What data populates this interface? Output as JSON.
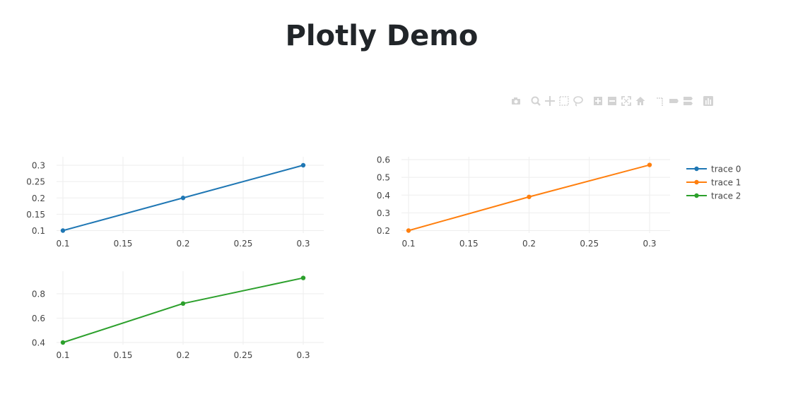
{
  "page": {
    "title": "Plotly Demo"
  },
  "modebar": {
    "buttons": [
      {
        "icon": "camera-icon"
      },
      {
        "icon": "zoom-icon"
      },
      {
        "icon": "pan-icon"
      },
      {
        "icon": "box-select-icon"
      },
      {
        "icon": "lasso-select-icon"
      },
      {
        "icon": "zoom-in-icon"
      },
      {
        "icon": "zoom-out-icon"
      },
      {
        "icon": "autoscale-icon"
      },
      {
        "icon": "home-icon"
      },
      {
        "icon": "spike-lines-icon"
      },
      {
        "icon": "hover-closest-icon"
      },
      {
        "icon": "hover-compare-icon"
      },
      {
        "icon": "plotly-logo-icon"
      }
    ],
    "color": "#d3d3d3"
  },
  "chart_data": [
    {
      "type": "line",
      "subplot": "top-left",
      "series": [
        {
          "name": "trace 0",
          "x": [
            0.1,
            0.2,
            0.3
          ],
          "y": [
            0.1,
            0.2,
            0.3
          ],
          "color": "#1f77b4"
        }
      ],
      "xlim": [
        0.1,
        0.3
      ],
      "ylim": [
        0.1,
        0.3
      ],
      "xticks": [
        "0.1",
        "0.15",
        "0.2",
        "0.25",
        "0.3"
      ],
      "yticks": [
        "0.1",
        "0.15",
        "0.2",
        "0.25",
        "0.3"
      ],
      "grid": true
    },
    {
      "type": "line",
      "subplot": "top-right",
      "series": [
        {
          "name": "trace 1",
          "x": [
            0.1,
            0.2,
            0.3
          ],
          "y": [
            0.2,
            0.39,
            0.57
          ],
          "color": "#ff7f0e"
        }
      ],
      "xlim": [
        0.1,
        0.3
      ],
      "ylim": [
        0.2,
        0.6
      ],
      "xticks": [
        "0.1",
        "0.15",
        "0.2",
        "0.25",
        "0.3"
      ],
      "yticks": [
        "0.2",
        "0.3",
        "0.4",
        "0.5",
        "0.6"
      ],
      "grid": true
    },
    {
      "type": "line",
      "subplot": "bottom-left",
      "series": [
        {
          "name": "trace 2",
          "x": [
            0.1,
            0.2,
            0.3
          ],
          "y": [
            0.4,
            0.72,
            0.93
          ],
          "color": "#2ca02c"
        }
      ],
      "xlim": [
        0.1,
        0.3
      ],
      "ylim": [
        0.4,
        0.8
      ],
      "xticks": [
        "0.1",
        "0.15",
        "0.2",
        "0.25",
        "0.3"
      ],
      "yticks": [
        "0.4",
        "0.6",
        "0.8"
      ],
      "grid": true
    }
  ],
  "legend": {
    "placement": "top-right",
    "entries": [
      {
        "name": "trace 0",
        "color": "#1f77b4"
      },
      {
        "name": "trace 1",
        "color": "#ff7f0e"
      },
      {
        "name": "trace 2",
        "color": "#2ca02c"
      }
    ]
  }
}
